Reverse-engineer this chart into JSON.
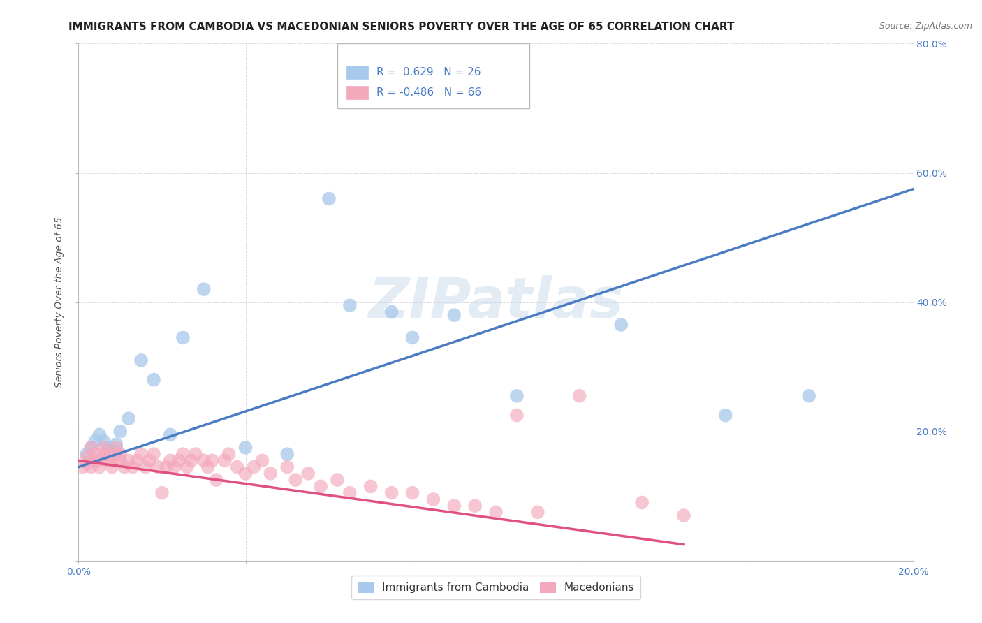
{
  "title": "IMMIGRANTS FROM CAMBODIA VS MACEDONIAN SENIORS POVERTY OVER THE AGE OF 65 CORRELATION CHART",
  "source": "Source: ZipAtlas.com",
  "ylabel": "Seniors Poverty Over the Age of 65",
  "xlim": [
    0.0,
    0.2
  ],
  "ylim": [
    0.0,
    0.8
  ],
  "blue_R": 0.629,
  "blue_N": 26,
  "pink_R": -0.486,
  "pink_N": 66,
  "blue_label": "Immigrants from Cambodia",
  "pink_label": "Macedonians",
  "watermark": "ZIPatlas",
  "blue_color": "#A8C8EC",
  "pink_color": "#F4A8BC",
  "blue_line_color": "#4A7CC4",
  "pink_line_color": "#E05080",
  "background_color": "#FFFFFF",
  "blue_scatter_x": [
    0.002,
    0.003,
    0.004,
    0.005,
    0.006,
    0.007,
    0.008,
    0.009,
    0.01,
    0.012,
    0.015,
    0.018,
    0.022,
    0.025,
    0.03,
    0.04,
    0.05,
    0.06,
    0.065,
    0.075,
    0.08,
    0.09,
    0.105,
    0.13,
    0.155,
    0.175
  ],
  "blue_scatter_y": [
    0.165,
    0.175,
    0.185,
    0.195,
    0.185,
    0.175,
    0.17,
    0.18,
    0.2,
    0.22,
    0.31,
    0.28,
    0.195,
    0.345,
    0.42,
    0.175,
    0.165,
    0.56,
    0.395,
    0.385,
    0.345,
    0.38,
    0.255,
    0.365,
    0.225,
    0.255
  ],
  "pink_scatter_x": [
    0.001,
    0.002,
    0.002,
    0.003,
    0.003,
    0.004,
    0.004,
    0.005,
    0.005,
    0.006,
    0.006,
    0.007,
    0.007,
    0.008,
    0.008,
    0.009,
    0.009,
    0.01,
    0.01,
    0.011,
    0.012,
    0.013,
    0.014,
    0.015,
    0.016,
    0.017,
    0.018,
    0.019,
    0.02,
    0.021,
    0.022,
    0.023,
    0.024,
    0.025,
    0.026,
    0.027,
    0.028,
    0.03,
    0.031,
    0.032,
    0.033,
    0.035,
    0.036,
    0.038,
    0.04,
    0.042,
    0.044,
    0.046,
    0.05,
    0.052,
    0.055,
    0.058,
    0.062,
    0.065,
    0.07,
    0.075,
    0.08,
    0.085,
    0.09,
    0.095,
    0.1,
    0.105,
    0.11,
    0.12,
    0.135,
    0.145
  ],
  "pink_scatter_y": [
    0.145,
    0.15,
    0.16,
    0.145,
    0.175,
    0.155,
    0.165,
    0.145,
    0.155,
    0.165,
    0.175,
    0.155,
    0.165,
    0.145,
    0.155,
    0.165,
    0.175,
    0.155,
    0.165,
    0.145,
    0.155,
    0.145,
    0.155,
    0.165,
    0.145,
    0.155,
    0.165,
    0.145,
    0.105,
    0.145,
    0.155,
    0.145,
    0.155,
    0.165,
    0.145,
    0.155,
    0.165,
    0.155,
    0.145,
    0.155,
    0.125,
    0.155,
    0.165,
    0.145,
    0.135,
    0.145,
    0.155,
    0.135,
    0.145,
    0.125,
    0.135,
    0.115,
    0.125,
    0.105,
    0.115,
    0.105,
    0.105,
    0.095,
    0.085,
    0.085,
    0.075,
    0.225,
    0.075,
    0.255,
    0.09,
    0.07
  ],
  "blue_line_x0": 0.0,
  "blue_line_y0": 0.145,
  "blue_line_x1": 0.2,
  "blue_line_y1": 0.575,
  "pink_line_x0": 0.0,
  "pink_line_y0": 0.155,
  "pink_line_x1": 0.145,
  "pink_line_y1": 0.025,
  "title_fontsize": 11,
  "source_fontsize": 9,
  "axis_label_fontsize": 10,
  "tick_fontsize": 10,
  "legend_fontsize": 11
}
